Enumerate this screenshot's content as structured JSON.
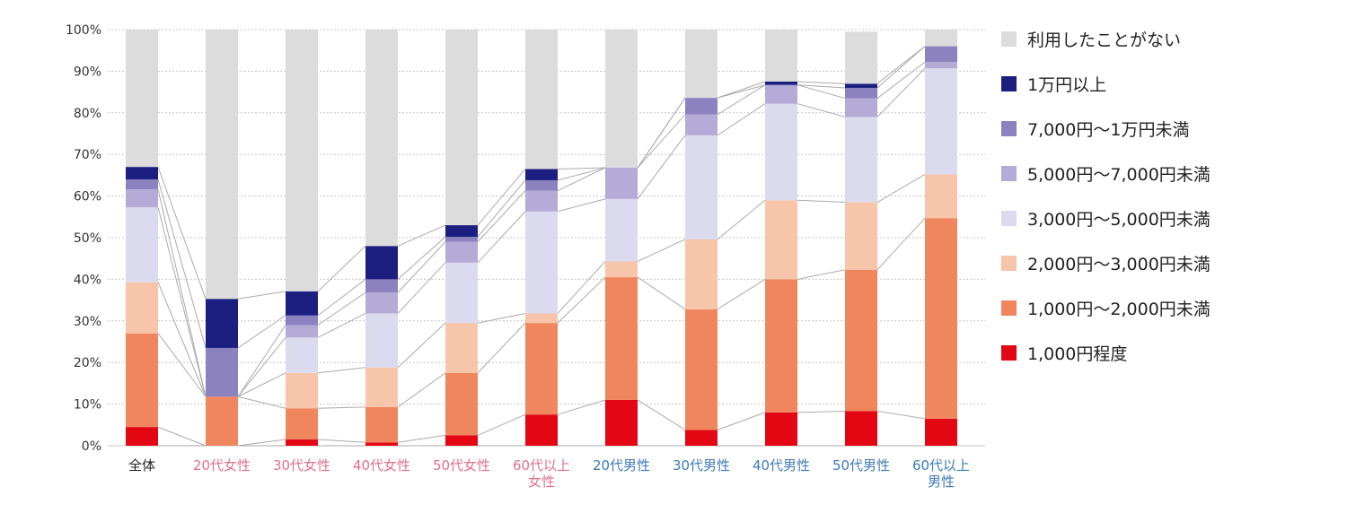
{
  "chart_data": {
    "type": "bar",
    "stacked": true,
    "ylim": [
      0,
      100
    ],
    "yticks": [
      "0%",
      "10%",
      "20%",
      "30%",
      "40%",
      "50%",
      "60%",
      "70%",
      "80%",
      "90%",
      "100%"
    ],
    "categories": [
      {
        "label": [
          "全体"
        ],
        "group": "all"
      },
      {
        "label": [
          "20代女性"
        ],
        "group": "female"
      },
      {
        "label": [
          "30代女性"
        ],
        "group": "female"
      },
      {
        "label": [
          "40代女性"
        ],
        "group": "female"
      },
      {
        "label": [
          "50代女性"
        ],
        "group": "female"
      },
      {
        "label": [
          "60代以上",
          "女性"
        ],
        "group": "female"
      },
      {
        "label": [
          "20代男性"
        ],
        "group": "male"
      },
      {
        "label": [
          "30代男性"
        ],
        "group": "male"
      },
      {
        "label": [
          "40代男性"
        ],
        "group": "male"
      },
      {
        "label": [
          "50代男性"
        ],
        "group": "male"
      },
      {
        "label": [
          "60代以上",
          "男性"
        ],
        "group": "male"
      }
    ],
    "group_colors": {
      "all": "#222222",
      "female": "#e0708e",
      "male": "#3d7ab8"
    },
    "series": [
      {
        "name": "1,000円程度",
        "color": "#e30613",
        "values": [
          4.5,
          0,
          1.5,
          0.8,
          2.5,
          7.5,
          11,
          3.8,
          8,
          8.3,
          6.5
        ]
      },
      {
        "name": "1,000円～2,000円未満",
        "color": "#ef865e",
        "values": [
          22.5,
          11.8,
          7.5,
          8.5,
          15,
          22,
          29.5,
          29,
          32,
          34,
          48.2
        ]
      },
      {
        "name": "2,000円～3,000円未満",
        "color": "#f6c5aa",
        "values": [
          12.3,
          0,
          8.5,
          9.5,
          12,
          2.3,
          3.8,
          16.8,
          19,
          16.2,
          10.5
        ]
      },
      {
        "name": "3,000円～5,000円未満",
        "color": "#dcdaee",
        "values": [
          18,
          0,
          8.5,
          13,
          14.5,
          24.5,
          15,
          25,
          23.2,
          20.5,
          25.5
        ]
      },
      {
        "name": "5,000円～7,000円未満",
        "color": "#b4abd6",
        "values": [
          4.3,
          0,
          3,
          5,
          5,
          5,
          7.5,
          5,
          4.5,
          4.5,
          1.5
        ]
      },
      {
        "name": "7,000円～1万円未満",
        "color": "#8b82bf",
        "values": [
          2.4,
          11.7,
          2.3,
          3.2,
          1.2,
          2.5,
          0,
          4,
          0,
          2.5,
          3.8
        ]
      },
      {
        "name": "1万円以上",
        "color": "#1c1f80",
        "values": [
          3,
          11.8,
          5.8,
          8,
          2.8,
          2.7,
          0,
          0,
          0.8,
          1,
          0
        ]
      },
      {
        "name": "利用したことがない",
        "color": "#dcdcdc",
        "values": [
          33,
          64.7,
          62.9,
          52,
          47,
          33.5,
          33.2,
          16.4,
          12.5,
          12.5,
          4
        ]
      }
    ],
    "legend_order": [
      "利用したことがない",
      "1万円以上",
      "7,000円～1万円未満",
      "5,000円～7,000円未満",
      "3,000円～5,000円未満",
      "2,000円～3,000円未満",
      "1,000円～2,000円未満",
      "1,000円程度"
    ],
    "legend_position": "right",
    "connector_lines": true,
    "grid": true
  }
}
